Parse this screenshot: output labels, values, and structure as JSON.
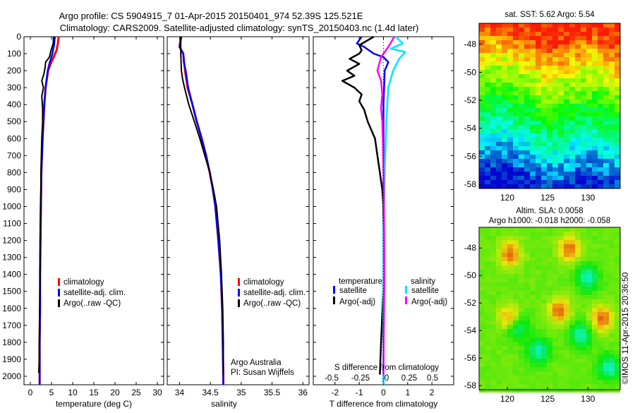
{
  "header": {
    "line1": "Argo profile: CS 5904915_7 01-Apr-2015 20150401_974 52.39S 125.521E",
    "line2": "Climatology: CARS2009. Satellite-adjusted climatology: synTS_20150403.nc (1.4d later)"
  },
  "colors": {
    "climatology": "#ff0000",
    "satellite": "#0000ff",
    "argo": "#000000",
    "sat_salinity": "#00e5ff",
    "argo_adj_salinity": "#ff00ff"
  },
  "chart_data": [
    {
      "type": "line",
      "xlabel": "temperature (deg C)",
      "ylabel": "",
      "ylim": [
        2050,
        0
      ],
      "xlim": [
        -1.5,
        31.5
      ],
      "y_ticks": [
        0,
        100,
        200,
        300,
        400,
        500,
        600,
        700,
        800,
        900,
        1000,
        1100,
        1200,
        1300,
        1400,
        1500,
        1600,
        1700,
        1800,
        1900,
        2000
      ],
      "x_ticks": [
        0,
        5,
        10,
        15,
        20,
        25,
        30
      ],
      "legend": [
        "climatology",
        "satellite-adj. clim.",
        "Argo(..raw -QC)"
      ],
      "series": [
        {
          "name": "climatology",
          "points": [
            [
              0,
              6.7
            ],
            [
              40,
              6.5
            ],
            [
              80,
              6.2
            ],
            [
              120,
              5.5
            ],
            [
              160,
              4.8
            ],
            [
              200,
              4.2
            ],
            [
              300,
              3.6
            ],
            [
              400,
              3.3
            ],
            [
              600,
              2.9
            ],
            [
              800,
              2.6
            ],
            [
              1000,
              2.5
            ],
            [
              1200,
              2.4
            ],
            [
              1400,
              2.3
            ],
            [
              1600,
              2.3
            ],
            [
              1800,
              2.2
            ],
            [
              2000,
              2.2
            ],
            [
              2050,
              2.2
            ]
          ]
        },
        {
          "name": "satellite-adj. clim.",
          "points": [
            [
              0,
              5.8
            ],
            [
              50,
              5.6
            ],
            [
              100,
              5.2
            ],
            [
              150,
              4.6
            ],
            [
              200,
              4.1
            ],
            [
              300,
              3.6
            ],
            [
              400,
              3.3
            ],
            [
              600,
              2.9
            ],
            [
              800,
              2.6
            ],
            [
              1000,
              2.5
            ],
            [
              1200,
              2.4
            ],
            [
              1400,
              2.3
            ],
            [
              1600,
              2.3
            ],
            [
              1800,
              2.2
            ],
            [
              2000,
              2.2
            ],
            [
              2050,
              2.2
            ]
          ]
        },
        {
          "name": "Argo(..raw -QC)",
          "points": [
            [
              0,
              5.5
            ],
            [
              40,
              5.4
            ],
            [
              80,
              4.9
            ],
            [
              120,
              4.5
            ],
            [
              150,
              3.6
            ],
            [
              180,
              3.5
            ],
            [
              220,
              3.2
            ],
            [
              260,
              2.7
            ],
            [
              300,
              3.1
            ],
            [
              350,
              2.7
            ],
            [
              420,
              2.9
            ],
            [
              500,
              2.9
            ],
            [
              600,
              2.7
            ],
            [
              700,
              2.6
            ],
            [
              800,
              2.5
            ],
            [
              900,
              2.5
            ],
            [
              1000,
              2.4
            ],
            [
              1200,
              2.3
            ],
            [
              1400,
              2.3
            ],
            [
              1600,
              2.2
            ],
            [
              1800,
              2.1
            ],
            [
              1900,
              2.1
            ],
            [
              1980,
              2.0
            ]
          ]
        }
      ]
    },
    {
      "type": "line",
      "xlabel": "salinity",
      "ylim": [
        2050,
        0
      ],
      "xlim": [
        33.8,
        36.1
      ],
      "x_ticks": [
        34,
        34.5,
        35,
        35.5,
        36
      ],
      "legend": [
        "climatology",
        "satellite-adj. clim.",
        "Argo(..raw -QC)"
      ],
      "annotation": [
        "Argo Australia",
        "PI: Susan Wijffels"
      ],
      "series": [
        {
          "name": "climatology",
          "points": [
            [
              0,
              34.02
            ],
            [
              60,
              34.0
            ],
            [
              100,
              34.06
            ],
            [
              200,
              34.09
            ],
            [
              300,
              34.13
            ],
            [
              400,
              34.21
            ],
            [
              500,
              34.28
            ],
            [
              600,
              34.36
            ],
            [
              700,
              34.43
            ],
            [
              800,
              34.49
            ],
            [
              900,
              34.54
            ],
            [
              1000,
              34.58
            ],
            [
              1200,
              34.63
            ],
            [
              1400,
              34.67
            ],
            [
              1600,
              34.69
            ],
            [
              1800,
              34.7
            ],
            [
              2000,
              34.71
            ],
            [
              2050,
              34.71
            ]
          ]
        },
        {
          "name": "satellite-adj. clim.",
          "points": [
            [
              0,
              34.03
            ],
            [
              60,
              34.0
            ],
            [
              100,
              34.06
            ],
            [
              150,
              34.07
            ],
            [
              200,
              34.1
            ],
            [
              300,
              34.14
            ],
            [
              400,
              34.21
            ],
            [
              500,
              34.28
            ],
            [
              600,
              34.36
            ],
            [
              700,
              34.43
            ],
            [
              800,
              34.49
            ],
            [
              900,
              34.54
            ],
            [
              1000,
              34.58
            ],
            [
              1200,
              34.63
            ],
            [
              1400,
              34.67
            ],
            [
              1600,
              34.69
            ],
            [
              1800,
              34.7
            ],
            [
              2000,
              34.71
            ],
            [
              2050,
              34.71
            ]
          ]
        },
        {
          "name": "Argo(..raw -QC)",
          "points": [
            [
              0,
              34.02
            ],
            [
              100,
              34.02
            ],
            [
              200,
              34.03
            ],
            [
              250,
              34.05
            ],
            [
              300,
              34.08
            ],
            [
              400,
              34.15
            ],
            [
              500,
              34.24
            ],
            [
              600,
              34.33
            ],
            [
              700,
              34.41
            ],
            [
              800,
              34.49
            ],
            [
              900,
              34.55
            ],
            [
              1000,
              34.6
            ],
            [
              1200,
              34.65
            ],
            [
              1400,
              34.68
            ],
            [
              1600,
              34.7
            ],
            [
              1800,
              34.71
            ],
            [
              1990,
              34.71
            ]
          ]
        }
      ]
    },
    {
      "type": "line",
      "xlabel": "T difference from climatology",
      "xlabel_top": "S difference from climatology",
      "ylim": [
        2050,
        0
      ],
      "xlim": [
        -2.9,
        2.9
      ],
      "x_ticks": [
        -2,
        -1,
        0,
        1,
        2
      ],
      "s_ticks": [
        "-0.5",
        "-0.25",
        "0",
        "0.25",
        "0.5"
      ],
      "legend_left_title": "temperature",
      "legend_left": [
        "satellite",
        "Argo(-adj)"
      ],
      "legend_right_title": "salinity",
      "legend_right": [
        "satellite",
        "Argo(-adj)"
      ],
      "series": [
        {
          "name": "temperature satellite",
          "points": [
            [
              0,
              -0.9
            ],
            [
              40,
              -1.1
            ],
            [
              60,
              -0.8
            ],
            [
              100,
              -0.4
            ],
            [
              120,
              0
            ],
            [
              150,
              0.2
            ],
            [
              200,
              0.05
            ],
            [
              400,
              0
            ],
            [
              800,
              0
            ],
            [
              1200,
              0
            ],
            [
              2050,
              0
            ]
          ]
        },
        {
          "name": "temperature Argo(-adj)",
          "points": [
            [
              0,
              -0.4
            ],
            [
              50,
              -1.0
            ],
            [
              80,
              -0.9
            ],
            [
              100,
              -1.0
            ],
            [
              130,
              -1.4
            ],
            [
              160,
              -1.0
            ],
            [
              200,
              -1.5
            ],
            [
              230,
              -1.2
            ],
            [
              260,
              -1.7
            ],
            [
              300,
              -1.2
            ],
            [
              340,
              -0.9
            ],
            [
              380,
              -1.0
            ],
            [
              430,
              -0.8
            ],
            [
              500,
              -0.65
            ],
            [
              600,
              -0.35
            ],
            [
              700,
              -0.25
            ],
            [
              800,
              -0.15
            ],
            [
              900,
              -0.05
            ],
            [
              1000,
              0.0
            ],
            [
              1400,
              0.02
            ],
            [
              1800,
              -0.1
            ],
            [
              1990,
              -0.15
            ]
          ]
        },
        {
          "name": "salinity satellite",
          "points": [
            [
              0,
              0.5
            ],
            [
              40,
              0.8
            ],
            [
              70,
              0.3
            ],
            [
              90,
              0.9
            ],
            [
              130,
              0.65
            ],
            [
              200,
              0.4
            ],
            [
              300,
              0.2
            ],
            [
              500,
              0.12
            ],
            [
              800,
              0.05
            ],
            [
              1200,
              0.0
            ],
            [
              2050,
              0.0
            ]
          ]
        },
        {
          "name": "salinity Argo(-adj)",
          "points": [
            [
              0,
              0.45
            ],
            [
              60,
              0.2
            ],
            [
              120,
              -0.1
            ],
            [
              200,
              -0.25
            ],
            [
              260,
              -0.1
            ],
            [
              340,
              -0.05
            ],
            [
              420,
              -0.1
            ],
            [
              500,
              -0.05
            ],
            [
              600,
              -0.03
            ],
            [
              800,
              0.0
            ],
            [
              1000,
              0.02
            ],
            [
              1400,
              0.04
            ],
            [
              1800,
              0.01
            ],
            [
              1990,
              0.0
            ]
          ]
        }
      ]
    },
    {
      "type": "heatmap",
      "title": "sat. SST: 5.62  Argo: 5.54",
      "x_ticks": [
        120,
        125,
        130
      ],
      "y_ticks": [
        -48,
        -50,
        -52,
        -54,
        -56,
        -58
      ],
      "xlim": [
        116.5,
        134
      ],
      "ylim": [
        -58.3,
        -46.5
      ]
    },
    {
      "type": "heatmap",
      "title": "Altim. SLA: 0.0058",
      "subtitle": "Argo h1000: -0.018 h2000: -0.058",
      "x_ticks": [
        120,
        125,
        130
      ],
      "y_ticks": [
        -48,
        -50,
        -52,
        -54,
        -56,
        -58
      ],
      "xlim": [
        116.5,
        134
      ],
      "ylim": [
        -58.3,
        -46.5
      ]
    }
  ],
  "footer": {
    "stamp": "©IMOS 11-Apr-2015 20:36:50"
  }
}
